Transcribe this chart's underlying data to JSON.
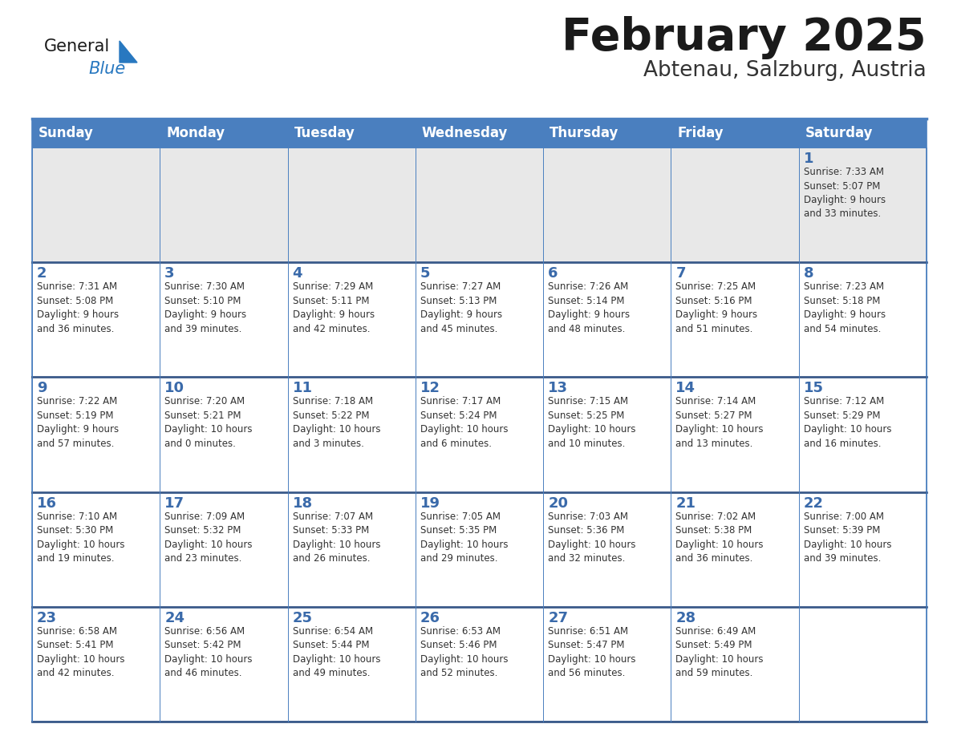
{
  "title": "February 2025",
  "subtitle": "Abtenau, Salzburg, Austria",
  "header_bg": "#4a7fbf",
  "header_text_color": "#ffffff",
  "cell_bg": "#ffffff",
  "first_week_bg": "#e8e8e8",
  "border_color": "#4a7fbf",
  "week_divider_color": "#3a5a8a",
  "title_color": "#1a1a1a",
  "subtitle_color": "#333333",
  "day_number_color": "#3a6aaa",
  "info_color": "#333333",
  "days_of_week": [
    "Sunday",
    "Monday",
    "Tuesday",
    "Wednesday",
    "Thursday",
    "Friday",
    "Saturday"
  ],
  "weeks": [
    [
      {
        "day": "",
        "info": ""
      },
      {
        "day": "",
        "info": ""
      },
      {
        "day": "",
        "info": ""
      },
      {
        "day": "",
        "info": ""
      },
      {
        "day": "",
        "info": ""
      },
      {
        "day": "",
        "info": ""
      },
      {
        "day": "1",
        "info": "Sunrise: 7:33 AM\nSunset: 5:07 PM\nDaylight: 9 hours\nand 33 minutes."
      }
    ],
    [
      {
        "day": "2",
        "info": "Sunrise: 7:31 AM\nSunset: 5:08 PM\nDaylight: 9 hours\nand 36 minutes."
      },
      {
        "day": "3",
        "info": "Sunrise: 7:30 AM\nSunset: 5:10 PM\nDaylight: 9 hours\nand 39 minutes."
      },
      {
        "day": "4",
        "info": "Sunrise: 7:29 AM\nSunset: 5:11 PM\nDaylight: 9 hours\nand 42 minutes."
      },
      {
        "day": "5",
        "info": "Sunrise: 7:27 AM\nSunset: 5:13 PM\nDaylight: 9 hours\nand 45 minutes."
      },
      {
        "day": "6",
        "info": "Sunrise: 7:26 AM\nSunset: 5:14 PM\nDaylight: 9 hours\nand 48 minutes."
      },
      {
        "day": "7",
        "info": "Sunrise: 7:25 AM\nSunset: 5:16 PM\nDaylight: 9 hours\nand 51 minutes."
      },
      {
        "day": "8",
        "info": "Sunrise: 7:23 AM\nSunset: 5:18 PM\nDaylight: 9 hours\nand 54 minutes."
      }
    ],
    [
      {
        "day": "9",
        "info": "Sunrise: 7:22 AM\nSunset: 5:19 PM\nDaylight: 9 hours\nand 57 minutes."
      },
      {
        "day": "10",
        "info": "Sunrise: 7:20 AM\nSunset: 5:21 PM\nDaylight: 10 hours\nand 0 minutes."
      },
      {
        "day": "11",
        "info": "Sunrise: 7:18 AM\nSunset: 5:22 PM\nDaylight: 10 hours\nand 3 minutes."
      },
      {
        "day": "12",
        "info": "Sunrise: 7:17 AM\nSunset: 5:24 PM\nDaylight: 10 hours\nand 6 minutes."
      },
      {
        "day": "13",
        "info": "Sunrise: 7:15 AM\nSunset: 5:25 PM\nDaylight: 10 hours\nand 10 minutes."
      },
      {
        "day": "14",
        "info": "Sunrise: 7:14 AM\nSunset: 5:27 PM\nDaylight: 10 hours\nand 13 minutes."
      },
      {
        "day": "15",
        "info": "Sunrise: 7:12 AM\nSunset: 5:29 PM\nDaylight: 10 hours\nand 16 minutes."
      }
    ],
    [
      {
        "day": "16",
        "info": "Sunrise: 7:10 AM\nSunset: 5:30 PM\nDaylight: 10 hours\nand 19 minutes."
      },
      {
        "day": "17",
        "info": "Sunrise: 7:09 AM\nSunset: 5:32 PM\nDaylight: 10 hours\nand 23 minutes."
      },
      {
        "day": "18",
        "info": "Sunrise: 7:07 AM\nSunset: 5:33 PM\nDaylight: 10 hours\nand 26 minutes."
      },
      {
        "day": "19",
        "info": "Sunrise: 7:05 AM\nSunset: 5:35 PM\nDaylight: 10 hours\nand 29 minutes."
      },
      {
        "day": "20",
        "info": "Sunrise: 7:03 AM\nSunset: 5:36 PM\nDaylight: 10 hours\nand 32 minutes."
      },
      {
        "day": "21",
        "info": "Sunrise: 7:02 AM\nSunset: 5:38 PM\nDaylight: 10 hours\nand 36 minutes."
      },
      {
        "day": "22",
        "info": "Sunrise: 7:00 AM\nSunset: 5:39 PM\nDaylight: 10 hours\nand 39 minutes."
      }
    ],
    [
      {
        "day": "23",
        "info": "Sunrise: 6:58 AM\nSunset: 5:41 PM\nDaylight: 10 hours\nand 42 minutes."
      },
      {
        "day": "24",
        "info": "Sunrise: 6:56 AM\nSunset: 5:42 PM\nDaylight: 10 hours\nand 46 minutes."
      },
      {
        "day": "25",
        "info": "Sunrise: 6:54 AM\nSunset: 5:44 PM\nDaylight: 10 hours\nand 49 minutes."
      },
      {
        "day": "26",
        "info": "Sunrise: 6:53 AM\nSunset: 5:46 PM\nDaylight: 10 hours\nand 52 minutes."
      },
      {
        "day": "27",
        "info": "Sunrise: 6:51 AM\nSunset: 5:47 PM\nDaylight: 10 hours\nand 56 minutes."
      },
      {
        "day": "28",
        "info": "Sunrise: 6:49 AM\nSunset: 5:49 PM\nDaylight: 10 hours\nand 59 minutes."
      },
      {
        "day": "",
        "info": ""
      }
    ]
  ],
  "logo_general_color": "#1a1a1a",
  "logo_blue_color": "#2878c0"
}
